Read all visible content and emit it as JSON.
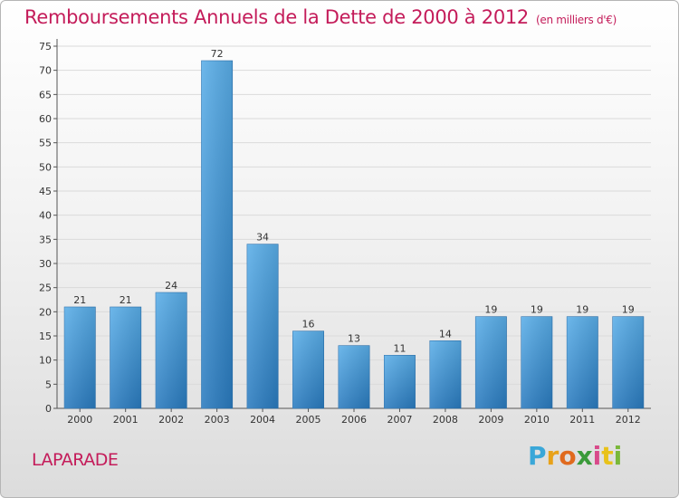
{
  "title": "Remboursements Annuels de la Dette de 2000 à 2012",
  "subtitle": "(en milliers d'€)",
  "commune": "LAPARADE",
  "logo": {
    "letters": [
      "P",
      "r",
      "o",
      "x",
      "i",
      "t",
      "i"
    ],
    "colors": [
      "#3aa7d8",
      "#e8a21a",
      "#e06a1e",
      "#3a9a3a",
      "#d84a8a",
      "#e8c21a",
      "#7ab83a"
    ]
  },
  "chart_data": {
    "type": "bar",
    "title": "Remboursements Annuels de la Dette de 2000 à 2012",
    "subtitle": "(en milliers d'€)",
    "categories": [
      "2000",
      "2001",
      "2002",
      "2003",
      "2004",
      "2005",
      "2006",
      "2007",
      "2008",
      "2009",
      "2010",
      "2011",
      "2012"
    ],
    "values": [
      21,
      21,
      24,
      72,
      34,
      16,
      13,
      11,
      14,
      19,
      19,
      19,
      19
    ],
    "value_labels": [
      "21",
      "21",
      "24",
      "72",
      "34",
      "16",
      "13",
      "11",
      "14",
      "19",
      "19",
      "19",
      "19"
    ],
    "ylim": [
      0,
      75
    ],
    "yticks": [
      0,
      5,
      10,
      15,
      20,
      25,
      30,
      35,
      40,
      45,
      50,
      55,
      60,
      65,
      70,
      75
    ],
    "grid": true,
    "bar_color_top": "#5aaee8",
    "bar_color_bottom": "#2a7bbf",
    "xlabel": "",
    "ylabel": ""
  }
}
